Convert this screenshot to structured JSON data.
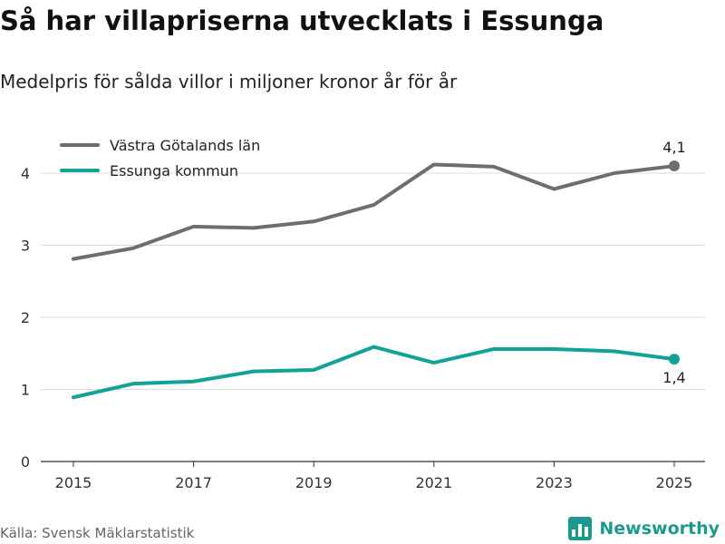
{
  "title": "Så har villapriserna utvecklats i Essunga",
  "subtitle": "Medelpris för sålda villor i miljoner kronor år för år",
  "source": "Källa: Svensk Mäklarstatistik",
  "brand": {
    "name": "Newsworthy",
    "logo_icon": "bar-chart-logo-icon",
    "color": "#1d9a8e"
  },
  "chart_data": {
    "type": "line",
    "title": "Så har villapriserna utvecklats i Essunga",
    "subtitle": "Medelpris för sålda villor i miljoner kronor år för år",
    "xlabel": "",
    "ylabel": "",
    "x": [
      2015,
      2016,
      2017,
      2018,
      2019,
      2020,
      2021,
      2022,
      2023,
      2024,
      2025
    ],
    "x_ticks": [
      "2015",
      "2017",
      "2019",
      "2021",
      "2023",
      "2025"
    ],
    "y_ticks": [
      "0",
      "1",
      "2",
      "3",
      "4"
    ],
    "ylim": [
      0,
      4.3
    ],
    "grid": true,
    "legend_position": "top-left",
    "series": [
      {
        "name": "Västra Götalands län",
        "color": "#6e6e6e",
        "values": [
          2.81,
          2.96,
          3.26,
          3.24,
          3.33,
          3.56,
          4.12,
          4.09,
          3.78,
          4.0,
          4.1
        ],
        "end_label": "4,1"
      },
      {
        "name": "Essunga kommun",
        "color": "#11a396",
        "values": [
          0.89,
          1.08,
          1.11,
          1.25,
          1.27,
          1.59,
          1.37,
          1.56,
          1.56,
          1.53,
          1.42
        ],
        "end_label": "1,4"
      }
    ]
  }
}
